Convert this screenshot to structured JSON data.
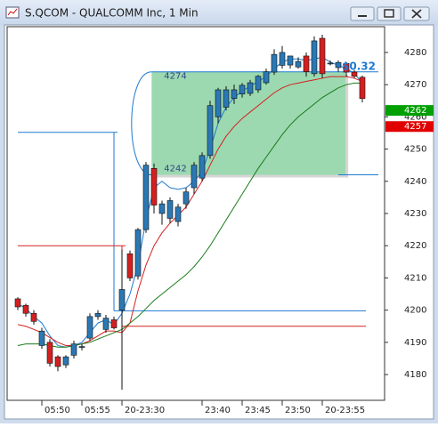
{
  "chart_data": {
    "type": "candlestick",
    "title": "S.QCOM - QUALCOMM Inc, 1 Min",
    "categories": [
      null,
      null,
      null,
      "05:50",
      null,
      null,
      null,
      null,
      "05:55",
      null,
      null,
      null,
      null,
      "20-23:30",
      null,
      null,
      null,
      null,
      null,
      null,
      null,
      null,
      null,
      "23:40",
      null,
      null,
      null,
      null,
      "23:45",
      null,
      null,
      null,
      null,
      "23:50",
      null,
      null,
      null,
      null,
      "20-23:55",
      null,
      null,
      null,
      null,
      null
    ],
    "ohlc": [
      [
        4203.5,
        4204,
        4200,
        4201
      ],
      [
        4201.5,
        4202,
        4198,
        4199
      ],
      [
        4199,
        4200,
        4195.5,
        4196.5
      ],
      [
        4189,
        4194.5,
        4188,
        4193.5
      ],
      [
        4190,
        4191,
        4182.5,
        4183.5
      ],
      [
        4185.5,
        4186,
        4181,
        4182.5
      ],
      [
        4183,
        4186,
        4182,
        4185.5
      ],
      [
        4186,
        4190.5,
        4185,
        4189.5
      ],
      [
        4188.5,
        4189.5,
        4187.5,
        4188.7
      ],
      [
        4191.3,
        4199,
        4190.5,
        4198
      ],
      [
        4198,
        4200,
        4197,
        4199
      ],
      [
        4194,
        4198.5,
        4193,
        4197.5
      ],
      [
        4197,
        4198,
        4194,
        4194.5
      ],
      [
        4200,
        4218.8,
        4175.3,
        4206.4
      ],
      [
        4217.5,
        4218.5,
        4209,
        4210
      ],
      [
        4210.6,
        4225.5,
        4209.5,
        4225
      ],
      [
        4225,
        4246,
        4224,
        4245
      ],
      [
        4244,
        4245.5,
        4230,
        4232.6
      ],
      [
        4230,
        4234,
        4226.5,
        4233
      ],
      [
        4228.5,
        4235,
        4227,
        4234
      ],
      [
        4227.5,
        4233,
        4226,
        4232
      ],
      [
        4233,
        4238,
        4231.5,
        4236.7
      ],
      [
        4238,
        4246,
        4236,
        4245
      ],
      [
        4241,
        4249,
        4240,
        4248
      ],
      [
        4248,
        4265,
        4247,
        4263.5
      ],
      [
        4260,
        4269,
        4258,
        4268.4
      ],
      [
        4263,
        4269.5,
        4262,
        4268.4
      ],
      [
        4265.7,
        4270,
        4264,
        4268.4
      ],
      [
        4267.1,
        4270.5,
        4266,
        4269.8
      ],
      [
        4267.3,
        4271.5,
        4266.5,
        4270.6
      ],
      [
        4268.4,
        4273,
        4267.5,
        4272.6
      ],
      [
        4270.6,
        4275,
        4270,
        4274
      ],
      [
        4273.9,
        4281,
        4273,
        4279.4
      ],
      [
        4276,
        4282,
        4275,
        4280
      ],
      [
        4276.1,
        4279,
        4275,
        4278.9
      ],
      [
        4275.5,
        4278.5,
        4275,
        4277.2
      ],
      [
        4278.9,
        4280,
        4272.5,
        4274
      ],
      [
        4273.4,
        4285,
        4272.5,
        4283.6
      ],
      [
        4284.4,
        4285.5,
        4272,
        4273.4
      ],
      [
        4276.7,
        4277.5,
        4276,
        4276.7
      ],
      [
        4275.3,
        4277.5,
        4274,
        4276.9
      ],
      [
        4276.6,
        4277,
        4272.5,
        4273.9
      ],
      [
        4273.9,
        4274.5,
        4272,
        4272.6
      ],
      [
        4272.3,
        4272.8,
        4264.5,
        4265.7
      ]
    ],
    "up_color": "#2a78b4",
    "down_color": "#d42020",
    "series": [
      {
        "color": "#1e7ad0",
        "values": [
          4202,
          4200.5,
          4198,
          4196,
          4192,
          4189,
          4188.5,
          4189,
          4190,
          4193,
          4196,
          4197,
          4195.5,
          4199,
          4205,
          4214,
          4228,
          4238,
          4240,
          4238,
          4237.5,
          4238,
          4240,
          4243,
          4250,
          4258,
          4263,
          4266,
          4268,
          4269.5,
          4271,
          4272.5,
          4275,
          4277,
          4278,
          4278,
          4277.5,
          4278,
          4278.5,
          4277,
          4276,
          4275,
          4273.5,
          4270.5
        ]
      },
      {
        "color": "#d42020",
        "values": [
          4195.5,
          4195,
          4194,
          4193,
          4191.5,
          4190,
          4189,
          4189,
          4189.5,
          4190.5,
          4192,
          4193.5,
          4193.5,
          4193,
          4196,
          4206,
          4214,
          4220,
          4224,
          4227,
          4229.5,
          4232,
          4236,
          4240,
          4245,
          4250,
          4254,
          4257,
          4259.5,
          4261.5,
          4263.5,
          4265.5,
          4267.5,
          4269,
          4270,
          4270.5,
          4271,
          4271.5,
          4272,
          4272.5,
          4272.5,
          4272.5,
          4272,
          4271
        ]
      },
      {
        "color": "#1a7a1a",
        "values": [
          4189,
          4189.5,
          4189.5,
          4189.5,
          4189,
          4188.5,
          4188.5,
          4189,
          4189.5,
          4190,
          4191,
          4192,
          4193,
          4194,
          4196,
          4198,
          4200.5,
          4203,
          4205,
          4207,
          4209,
          4211,
          4213.5,
          4216.5,
          4220,
          4224,
          4228,
          4232,
          4236,
          4240,
          4244,
          4247.5,
          4251,
          4254.5,
          4257.5,
          4260,
          4262,
          4264,
          4266,
          4267.5,
          4269,
          4270,
          4270.5,
          4270.5
        ]
      }
    ],
    "levels": [
      {
        "color": "#1e7ad0",
        "value": 4255.2,
        "x": [
          0,
          12
        ]
      },
      {
        "color": "#1e7ad0",
        "value": 4199.8,
        "x": [
          12,
          43
        ]
      },
      {
        "color": "#d42020",
        "value": 4220,
        "x": [
          0,
          13
        ]
      },
      {
        "color": "#d42020",
        "value": 4195,
        "x": [
          13,
          43
        ]
      }
    ],
    "box": {
      "top": 4274,
      "bottom": 4242,
      "x": [
        16.7,
        40.9
      ],
      "color": "#9cd9b0"
    },
    "annotation": "$0.32",
    "price_tags": [
      {
        "value": 4262,
        "color": "#00a000"
      },
      {
        "value": 4257,
        "color": "#e00000"
      }
    ],
    "ylim": [
      4172,
      4288
    ],
    "yticks": [
      4180,
      4190,
      4200,
      4210,
      4220,
      4230,
      4240,
      4250,
      4260,
      4270,
      4280
    ]
  }
}
